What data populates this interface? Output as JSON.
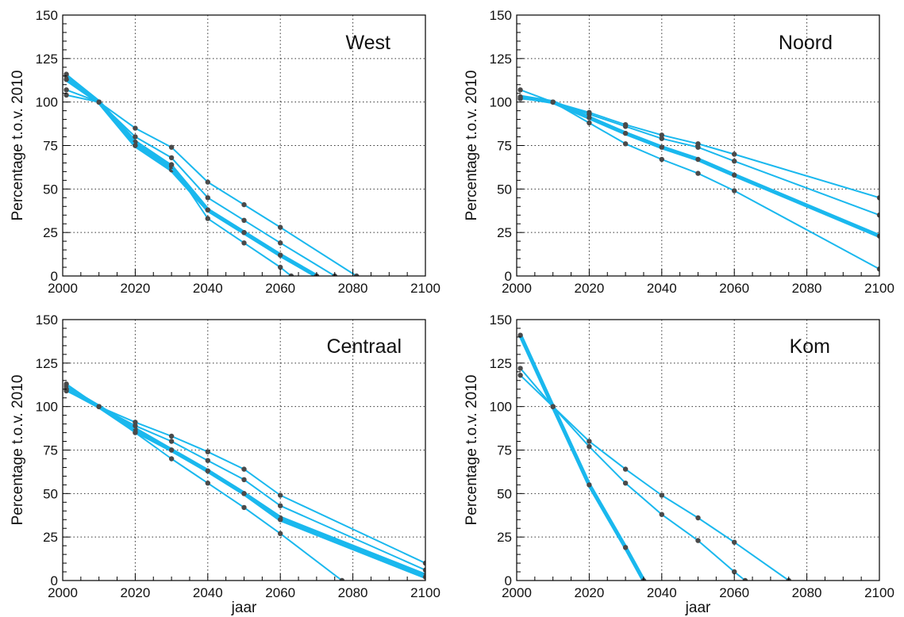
{
  "chart_data": [
    {
      "type": "line",
      "title": "West",
      "xlabel": "",
      "ylabel": "Percentage t.o.v. 2010",
      "xlim": [
        2000,
        2100
      ],
      "ylim": [
        0,
        150
      ],
      "xticks": [
        2000,
        2020,
        2040,
        2060,
        2080,
        2100
      ],
      "yticks": [
        0,
        25,
        50,
        75,
        100,
        125,
        150
      ],
      "grid": true,
      "series": [
        {
          "thick": true,
          "points": [
            [
              2001,
              115
            ],
            [
              2010,
              100
            ],
            [
              2020,
              75
            ],
            [
              2030,
              61
            ],
            [
              2040,
              38
            ],
            [
              2050,
              25
            ],
            [
              2060,
              12
            ],
            [
              2070,
              0
            ]
          ]
        },
        {
          "thick": true,
          "points": [
            [
              2001,
              113
            ],
            [
              2010,
              100
            ],
            [
              2020,
              77
            ],
            [
              2030,
              63
            ],
            [
              2040,
              38
            ],
            [
              2050,
              25
            ],
            [
              2060,
              12
            ],
            [
              2070,
              0
            ]
          ]
        },
        {
          "thick": false,
          "points": [
            [
              2001,
              107
            ],
            [
              2010,
              100
            ],
            [
              2020,
              80
            ],
            [
              2030,
              68
            ],
            [
              2040,
              45
            ],
            [
              2050,
              32
            ],
            [
              2060,
              19
            ],
            [
              2075,
              0
            ]
          ]
        },
        {
          "thick": false,
          "points": [
            [
              2001,
              104
            ],
            [
              2010,
              100
            ],
            [
              2020,
              85
            ],
            [
              2030,
              74
            ],
            [
              2040,
              54
            ],
            [
              2050,
              41
            ],
            [
              2060,
              28
            ],
            [
              2081,
              0
            ]
          ]
        },
        {
          "thick": false,
          "points": [
            [
              2001,
              116
            ],
            [
              2010,
              100
            ],
            [
              2020,
              75
            ],
            [
              2030,
              64
            ],
            [
              2040,
              33
            ],
            [
              2050,
              19
            ],
            [
              2060,
              5
            ],
            [
              2063,
              0
            ]
          ]
        }
      ]
    },
    {
      "type": "line",
      "title": "Noord",
      "xlabel": "",
      "ylabel": "Percentage t.o.v. 2010",
      "xlim": [
        2000,
        2100
      ],
      "ylim": [
        0,
        150
      ],
      "xticks": [
        2000,
        2020,
        2040,
        2060,
        2080,
        2100
      ],
      "yticks": [
        0,
        25,
        50,
        75,
        100,
        125,
        150
      ],
      "grid": true,
      "series": [
        {
          "thick": true,
          "points": [
            [
              2001,
              103
            ],
            [
              2010,
              100
            ],
            [
              2020,
              91
            ],
            [
              2030,
              82
            ],
            [
              2040,
              74
            ],
            [
              2050,
              67
            ],
            [
              2060,
              58
            ],
            [
              2100,
              23
            ]
          ]
        },
        {
          "thick": false,
          "points": [
            [
              2001,
              102
            ],
            [
              2010,
              100
            ],
            [
              2020,
              94
            ],
            [
              2030,
              87
            ],
            [
              2040,
              81
            ],
            [
              2050,
              76
            ],
            [
              2060,
              70
            ],
            [
              2100,
              45
            ]
          ]
        },
        {
          "thick": false,
          "points": [
            [
              2001,
              102
            ],
            [
              2010,
              100
            ],
            [
              2020,
              93
            ],
            [
              2030,
              86
            ],
            [
              2040,
              79
            ],
            [
              2050,
              74
            ],
            [
              2060,
              66
            ],
            [
              2100,
              35
            ]
          ]
        },
        {
          "thick": false,
          "points": [
            [
              2001,
              107
            ],
            [
              2010,
              100
            ],
            [
              2020,
              88
            ],
            [
              2030,
              76
            ],
            [
              2040,
              67
            ],
            [
              2050,
              59
            ],
            [
              2060,
              49
            ],
            [
              2100,
              4
            ]
          ]
        }
      ]
    },
    {
      "type": "line",
      "title": "Centraal",
      "xlabel": "jaar",
      "ylabel": "Percentage t.o.v. 2010",
      "xlim": [
        2000,
        2100
      ],
      "ylim": [
        0,
        150
      ],
      "xticks": [
        2000,
        2020,
        2040,
        2060,
        2080,
        2100
      ],
      "yticks": [
        0,
        25,
        50,
        75,
        100,
        125,
        150
      ],
      "grid": true,
      "series": [
        {
          "thick": true,
          "points": [
            [
              2001,
              111
            ],
            [
              2010,
              100
            ],
            [
              2020,
              87
            ],
            [
              2030,
              75
            ],
            [
              2040,
              63
            ],
            [
              2050,
              50
            ],
            [
              2060,
              36
            ],
            [
              2100,
              3
            ]
          ]
        },
        {
          "thick": true,
          "points": [
            [
              2001,
              110
            ],
            [
              2010,
              100
            ],
            [
              2020,
              86
            ],
            [
              2030,
              75
            ],
            [
              2040,
              63
            ],
            [
              2050,
              50
            ],
            [
              2060,
              35
            ],
            [
              2100,
              2
            ]
          ]
        },
        {
          "thick": false,
          "points": [
            [
              2001,
              109
            ],
            [
              2010,
              100
            ],
            [
              2020,
              91
            ],
            [
              2030,
              83
            ],
            [
              2040,
              74
            ],
            [
              2050,
              64
            ],
            [
              2060,
              49
            ],
            [
              2100,
              10
            ]
          ]
        },
        {
          "thick": false,
          "points": [
            [
              2001,
              112
            ],
            [
              2010,
              100
            ],
            [
              2020,
              89
            ],
            [
              2030,
              80
            ],
            [
              2040,
              69
            ],
            [
              2050,
              58
            ],
            [
              2060,
              43
            ],
            [
              2100,
              6
            ]
          ]
        },
        {
          "thick": false,
          "points": [
            [
              2001,
              113
            ],
            [
              2010,
              100
            ],
            [
              2020,
              85
            ],
            [
              2030,
              70
            ],
            [
              2040,
              56
            ],
            [
              2050,
              42
            ],
            [
              2060,
              27
            ],
            [
              2077,
              0
            ]
          ]
        }
      ]
    },
    {
      "type": "line",
      "title": "Kom",
      "xlabel": "jaar",
      "ylabel": "Percentage t.o.v. 2010",
      "xlim": [
        2000,
        2100
      ],
      "ylim": [
        0,
        150
      ],
      "xticks": [
        2000,
        2020,
        2040,
        2060,
        2080,
        2100
      ],
      "yticks": [
        0,
        25,
        50,
        75,
        100,
        125,
        150
      ],
      "grid": true,
      "series": [
        {
          "thick": true,
          "points": [
            [
              2001,
              141
            ],
            [
              2010,
              100
            ],
            [
              2020,
              55
            ],
            [
              2030,
              19
            ],
            [
              2035,
              0
            ]
          ]
        },
        {
          "thick": false,
          "points": [
            [
              2001,
              118
            ],
            [
              2010,
              100
            ],
            [
              2020,
              80
            ],
            [
              2030,
              64
            ],
            [
              2040,
              49
            ],
            [
              2050,
              36
            ],
            [
              2060,
              22
            ],
            [
              2075,
              0
            ]
          ]
        },
        {
          "thick": false,
          "points": [
            [
              2001,
              122
            ],
            [
              2010,
              100
            ],
            [
              2020,
              77
            ],
            [
              2030,
              56
            ],
            [
              2040,
              38
            ],
            [
              2050,
              23
            ],
            [
              2060,
              5
            ],
            [
              2063,
              0
            ]
          ]
        }
      ]
    }
  ]
}
